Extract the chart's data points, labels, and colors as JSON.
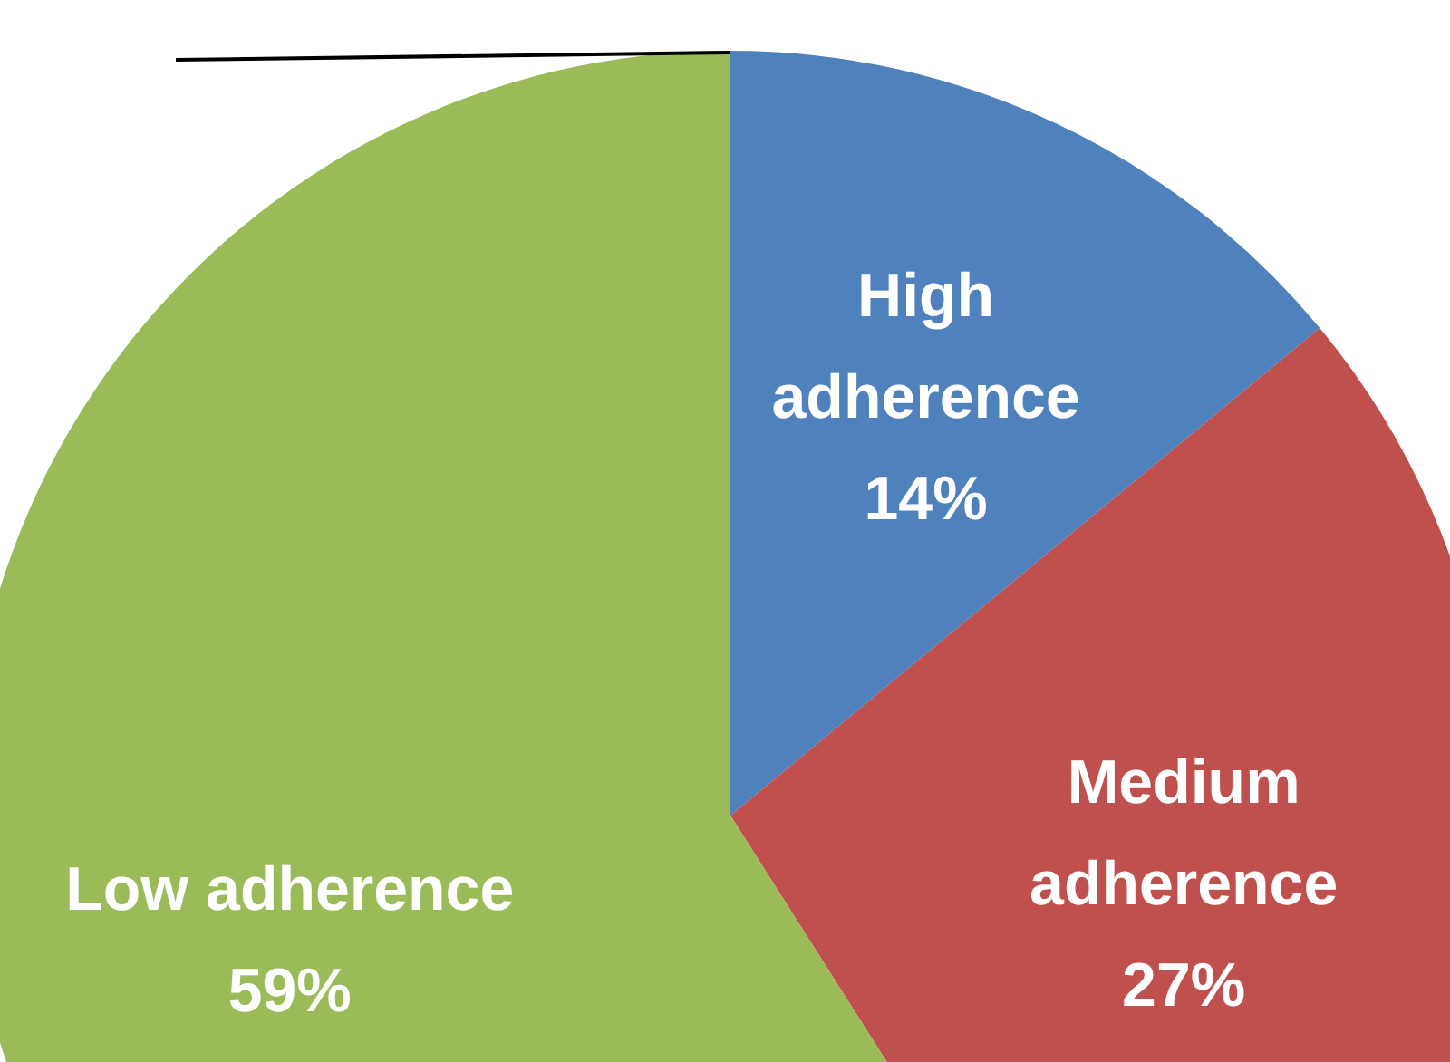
{
  "chart_data": {
    "type": "pie",
    "categories": [
      "High adherence",
      "Medium adherence",
      "Low adherence"
    ],
    "values": [
      14,
      27,
      59
    ],
    "colors": [
      "#4f81bd",
      "#c0504d",
      "#9bbb59"
    ],
    "value_labels": [
      "14%",
      "27%",
      "59%"
    ],
    "legend": false
  }
}
